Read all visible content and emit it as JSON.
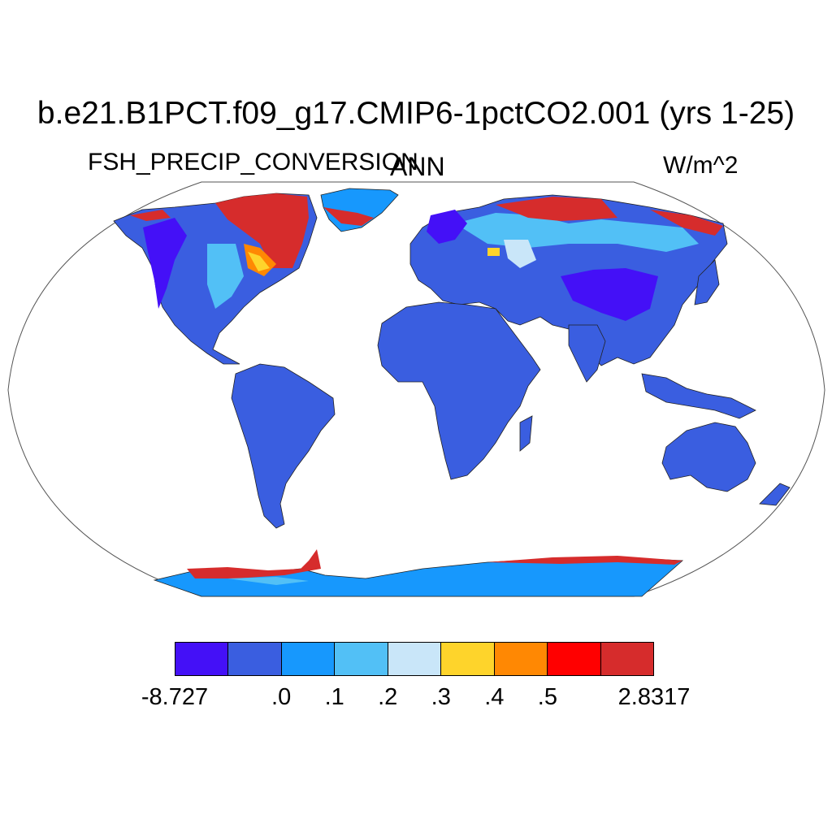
{
  "title": "b.e21.B1PCT.f09_g17.CMIP6-1pctCO2.001 (yrs 1-25)",
  "subtitle_left": "FSH_PRECIP_CONVERSION",
  "subtitle_center": "ANN",
  "subtitle_right": "W/m^2",
  "colorbar": {
    "colors": [
      "#4410f7",
      "#3a5ee0",
      "#1798fd",
      "#52c0f6",
      "#c9e6f9",
      "#fed42b",
      "#ff8803",
      "#ff0000",
      "#d62c2c"
    ],
    "labels": [
      "-8.727",
      ".0",
      ".1",
      ".2",
      ".3",
      ".4",
      ".5",
      "2.8317"
    ]
  },
  "map": {
    "projection": "Robinson",
    "land_color": "#3a5ee0",
    "antarctica_color": "#1798fd"
  }
}
